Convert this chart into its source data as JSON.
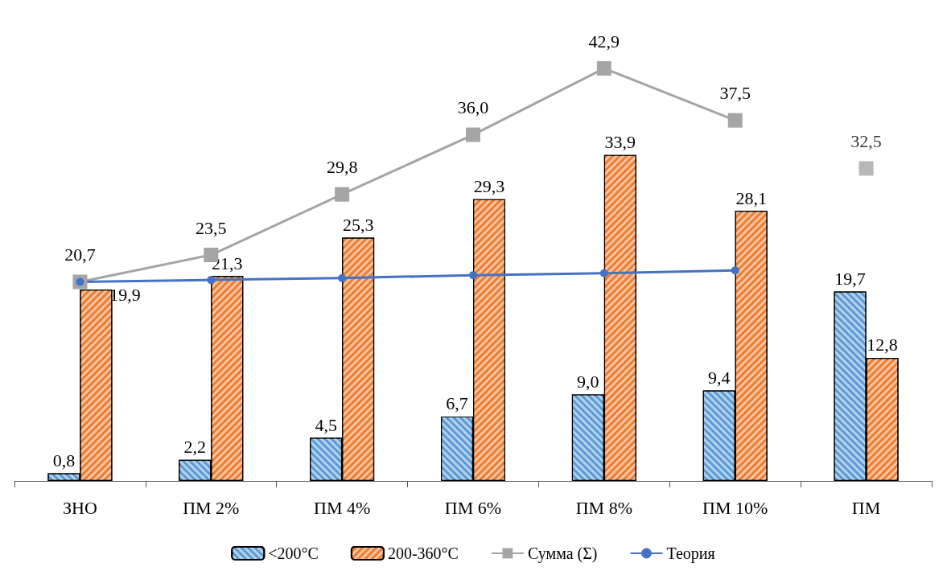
{
  "chart_data": {
    "type": "bar",
    "categories": [
      "ЗНО",
      "ПМ 2%",
      "ПМ 4%",
      "ПМ 6%",
      "ПМ 8%",
      "ПМ 10%",
      "ПМ"
    ],
    "series": [
      {
        "name": "<200°C",
        "color": "#5b9bd5",
        "values": [
          0.8,
          2.2,
          4.5,
          6.7,
          9.0,
          9.4,
          19.7
        ],
        "value_labels": [
          "0,8",
          "2,2",
          "4,5",
          "6,7",
          "9,0",
          "9,4",
          "19,7"
        ]
      },
      {
        "name": "200-360°C",
        "color": "#ed7d31",
        "values": [
          19.9,
          21.3,
          25.3,
          29.3,
          33.9,
          28.1,
          12.8
        ],
        "value_labels": [
          "19,9",
          "21,3",
          "25,3",
          "29,3",
          "33,9",
          "28,1",
          "12,8"
        ]
      },
      {
        "name": "Сумма (Σ)",
        "type": "line",
        "color": "#a5a5a5",
        "marker": "square",
        "values": [
          20.7,
          23.5,
          29.8,
          36.0,
          42.9,
          37.5,
          null
        ],
        "value_labels": [
          "20,7",
          "23,5",
          "29,8",
          "36,0",
          "42,9",
          "37,5",
          null
        ]
      },
      {
        "type": "scatter",
        "color": "#a5a5a5",
        "marker": "square",
        "values": [
          null,
          null,
          null,
          null,
          null,
          null,
          32.5
        ],
        "value_labels": [
          null,
          null,
          null,
          null,
          null,
          null,
          "32,5"
        ]
      },
      {
        "name": "Теория",
        "type": "line",
        "color": "#4472c4",
        "marker": "circle",
        "values": [
          20.7,
          20.9,
          21.1,
          21.4,
          21.6,
          21.9,
          null
        ]
      }
    ],
    "legend": "bottom"
  }
}
